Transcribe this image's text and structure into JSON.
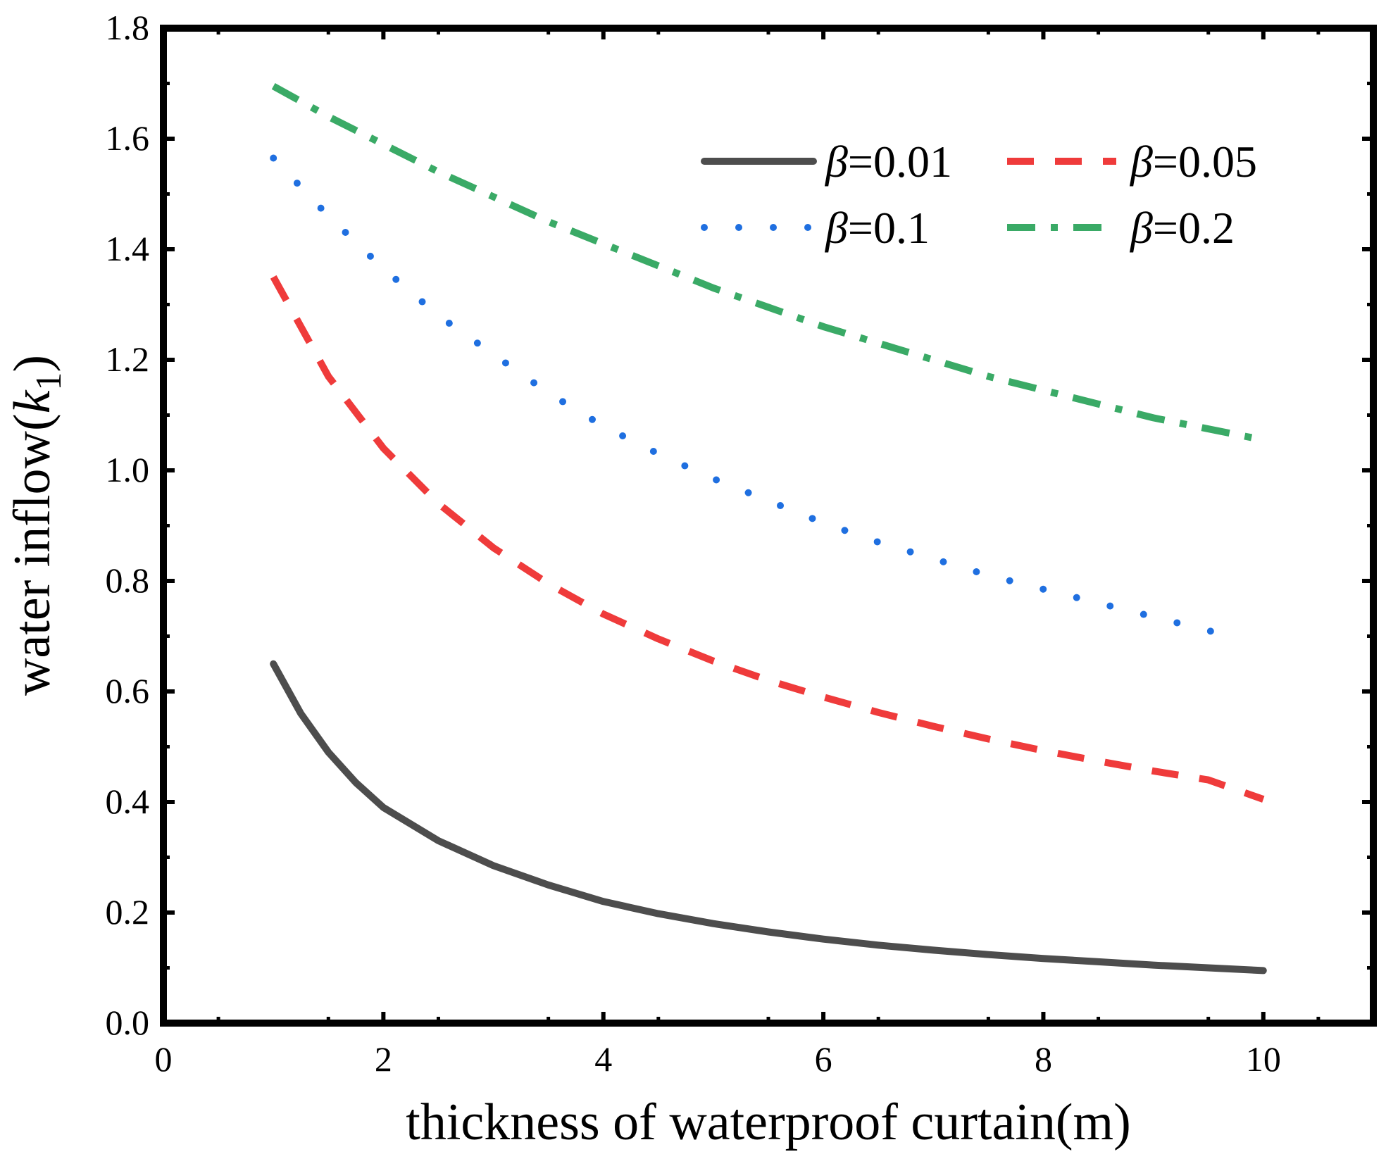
{
  "chart_data": {
    "type": "line",
    "title": "",
    "xlabel": "thickness of  waterproof curtain(m)",
    "ylabel": {
      "main": "water inflow(",
      "var": "k",
      "sub": "1",
      "close": ")"
    },
    "xlim": [
      0,
      11
    ],
    "ylim": [
      0,
      1.8
    ],
    "xticks": [
      0,
      2,
      4,
      6,
      8,
      10
    ],
    "xtick_labels": [
      "0",
      "2",
      "4",
      "6",
      "8",
      "10"
    ],
    "yticks": [
      0,
      0.2,
      0.4,
      0.6,
      0.8,
      1.0,
      1.2,
      1.4,
      1.6,
      1.8
    ],
    "ytick_labels": [
      "0.0",
      "0.2",
      "0.4",
      "0.6",
      "0.8",
      "1.0",
      "1.2",
      "1.4",
      "1.6",
      "1.8"
    ],
    "grid": false,
    "legend_position": "top-right",
    "series": [
      {
        "name": "β=0.01",
        "symbol": "β",
        "value_text": "=0.01",
        "color": "#4d4d4d",
        "style": "solid",
        "x": [
          1.0,
          1.25,
          1.5,
          1.75,
          2.0,
          2.5,
          3.0,
          3.5,
          4.0,
          4.5,
          5.0,
          5.5,
          6.0,
          6.5,
          7.0,
          7.5,
          8.0,
          8.5,
          9.0,
          9.5,
          10.0
        ],
        "values": [
          0.65,
          0.56,
          0.49,
          0.435,
          0.39,
          0.33,
          0.285,
          0.25,
          0.22,
          0.198,
          0.18,
          0.165,
          0.152,
          0.141,
          0.132,
          0.124,
          0.117,
          0.111,
          0.105,
          0.1,
          0.095
        ]
      },
      {
        "name": "β=0.05",
        "symbol": "β",
        "value_text": "=0.05",
        "color": "#ef3b3b",
        "style": "dashed",
        "x": [
          1.0,
          1.5,
          2.0,
          2.5,
          3.0,
          3.5,
          4.0,
          4.5,
          5.0,
          5.5,
          6.0,
          6.5,
          7.0,
          7.5,
          8.0,
          8.5,
          9.0,
          9.5,
          10.0
        ],
        "values": [
          1.35,
          1.17,
          1.04,
          0.94,
          0.86,
          0.795,
          0.74,
          0.695,
          0.655,
          0.62,
          0.59,
          0.562,
          0.537,
          0.514,
          0.493,
          0.474,
          0.456,
          0.44,
          0.405
        ]
      },
      {
        "name": "β=0.1",
        "symbol": "β",
        "value_text": "=0.1",
        "color": "#1f6fe0",
        "style": "dotted",
        "x": [
          1.0,
          1.5,
          2.0,
          2.5,
          3.0,
          3.5,
          4.0,
          4.5,
          5.0,
          5.5,
          6.0,
          6.5,
          7.0,
          7.5,
          8.0,
          8.5,
          9.0,
          9.5,
          9.8
        ],
        "values": [
          1.565,
          1.46,
          1.365,
          1.28,
          1.21,
          1.14,
          1.08,
          1.03,
          0.985,
          0.945,
          0.905,
          0.87,
          0.84,
          0.81,
          0.785,
          0.76,
          0.735,
          0.71,
          0.695
        ]
      },
      {
        "name": "β=0.2",
        "symbol": "β",
        "value_text": "=0.2",
        "color": "#3aaa66",
        "style": "dashdot",
        "x": [
          1.0,
          1.5,
          2.0,
          2.5,
          3.0,
          3.5,
          4.0,
          4.5,
          5.0,
          5.5,
          6.0,
          6.5,
          7.0,
          7.5,
          8.0,
          8.5,
          9.0,
          9.5,
          10.0
        ],
        "values": [
          1.695,
          1.64,
          1.59,
          1.54,
          1.495,
          1.45,
          1.41,
          1.37,
          1.33,
          1.295,
          1.26,
          1.23,
          1.2,
          1.17,
          1.145,
          1.12,
          1.095,
          1.075,
          1.055
        ]
      }
    ]
  }
}
